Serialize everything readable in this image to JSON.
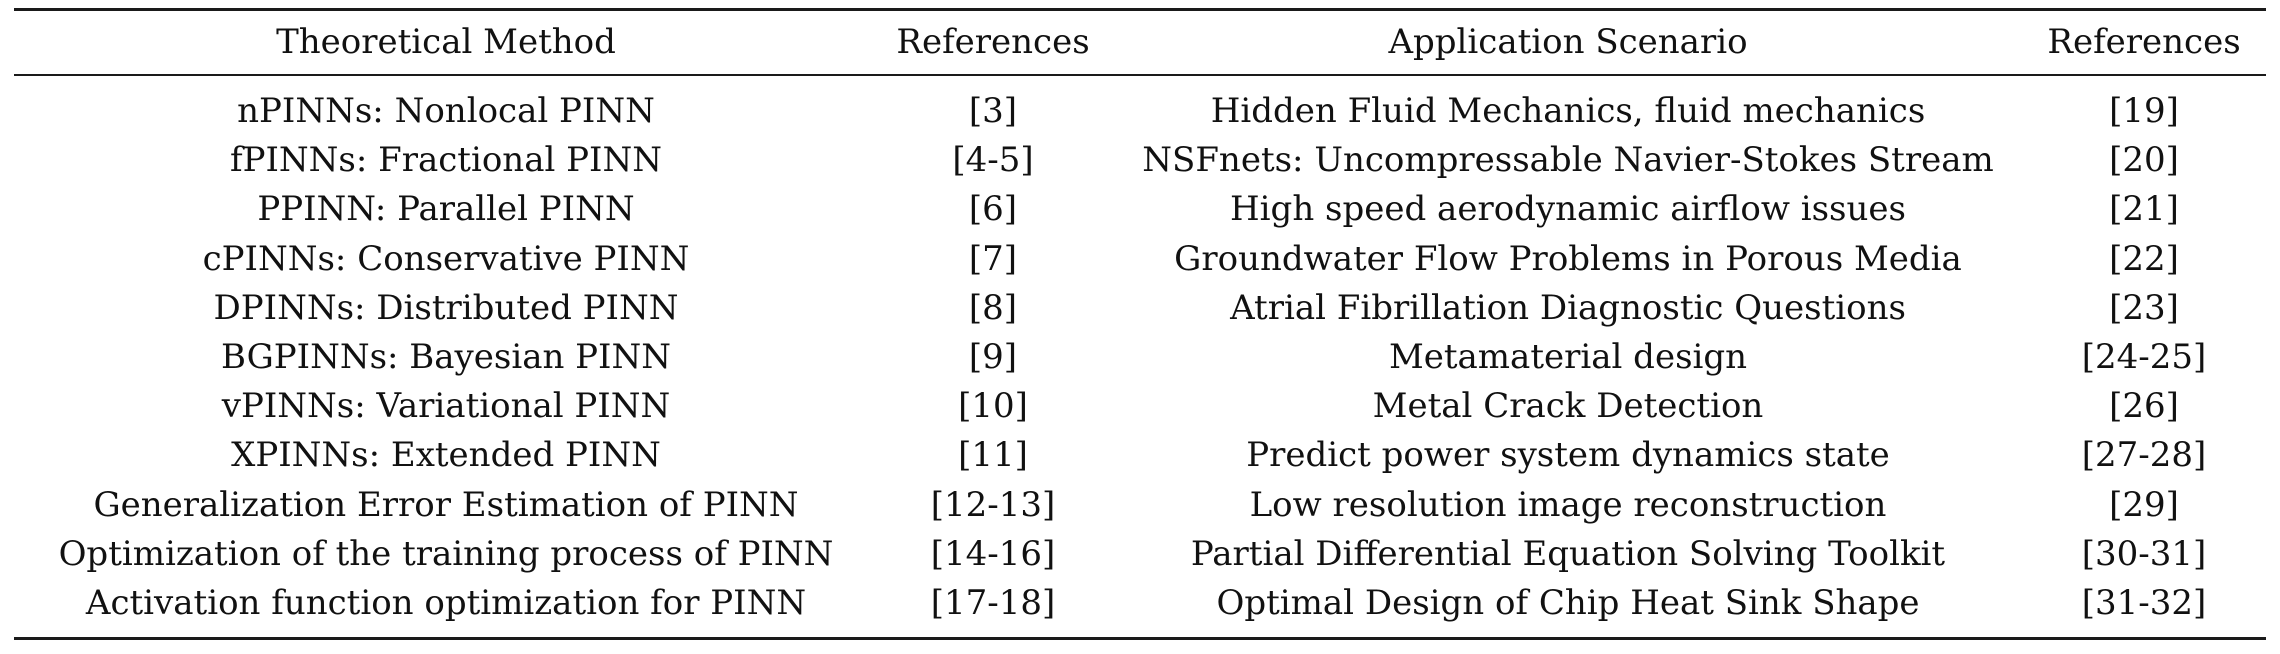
{
  "table": {
    "headers": {
      "method": "Theoretical Method",
      "method_refs": "References",
      "scenario": "Application Scenario",
      "scenario_refs": "References"
    },
    "rows": [
      {
        "method": "nPINNs: Nonlocal PINN",
        "method_refs": "[3]",
        "scenario": "Hidden Fluid Mechanics, fluid mechanics",
        "scenario_refs": "[19]"
      },
      {
        "method": "fPINNs: Fractional PINN",
        "method_refs": "[4-5]",
        "scenario": "NSFnets: Uncompressable Navier-Stokes Stream",
        "scenario_refs": "[20]"
      },
      {
        "method": "PPINN: Parallel PINN",
        "method_refs": "[6]",
        "scenario": "High speed aerodynamic airflow issues",
        "scenario_refs": "[21]"
      },
      {
        "method": "cPINNs: Conservative PINN",
        "method_refs": "[7]",
        "scenario": "Groundwater Flow Problems in Porous Media",
        "scenario_refs": "[22]"
      },
      {
        "method": "DPINNs: Distributed PINN",
        "method_refs": "[8]",
        "scenario": "Atrial Fibrillation Diagnostic Questions",
        "scenario_refs": "[23]"
      },
      {
        "method": "BGPINNs: Bayesian PINN",
        "method_refs": "[9]",
        "scenario": "Metamaterial design",
        "scenario_refs": "[24-25]"
      },
      {
        "method": "vPINNs: Variational PINN",
        "method_refs": "[10]",
        "scenario": "Metal Crack Detection",
        "scenario_refs": "[26]"
      },
      {
        "method": "XPINNs: Extended PINN",
        "method_refs": "[11]",
        "scenario": "Predict power system dynamics state",
        "scenario_refs": "[27-28]"
      },
      {
        "method": "Generalization Error Estimation of PINN",
        "method_refs": "[12-13]",
        "scenario": "Low resolution image reconstruction",
        "scenario_refs": "[29]"
      },
      {
        "method": "Optimization of the training process of PINN",
        "method_refs": "[14-16]",
        "scenario": "Partial Differential Equation Solving Toolkit",
        "scenario_refs": "[30-31]"
      },
      {
        "method": "Activation function optimization for PINN",
        "method_refs": "[17-18]",
        "scenario": "Optimal Design of Chip Heat Sink Shape",
        "scenario_refs": "[31-32]"
      }
    ]
  }
}
